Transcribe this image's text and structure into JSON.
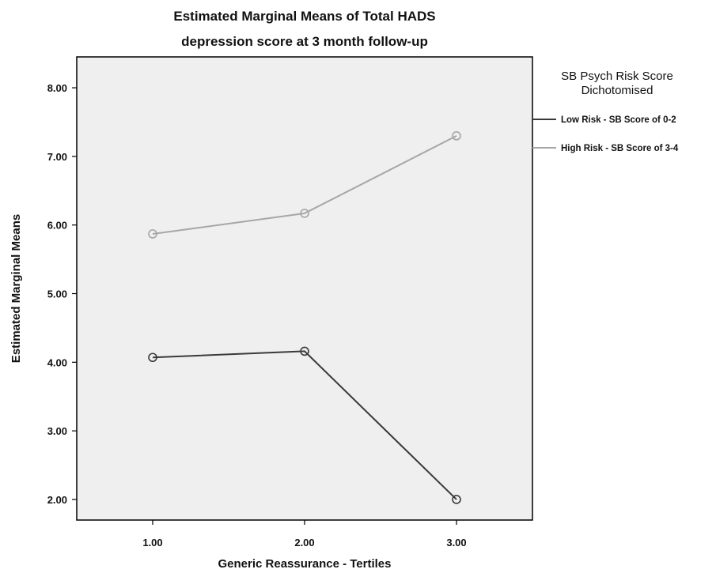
{
  "chart_data": {
    "type": "line",
    "title": [
      "Estimated Marginal Means of Total HADS",
      "depression score at 3 month follow-up"
    ],
    "xlabel": "Generic Reassurance - Tertiles",
    "ylabel": "Estimated Marginal Means",
    "categories": [
      "1.00",
      "2.00",
      "3.00"
    ],
    "x": [
      1,
      2,
      3
    ],
    "xlim": [
      0.5,
      3.5
    ],
    "ylim": [
      1.7,
      8.45
    ],
    "yticks": [
      2,
      3,
      4,
      5,
      6,
      7,
      8
    ],
    "ytick_labels": [
      "2.00",
      "3.00",
      "4.00",
      "5.00",
      "6.00",
      "7.00",
      "8.00"
    ],
    "grid": false,
    "legend": {
      "title": [
        "SB Psych Risk Score",
        "Dichotomised"
      ],
      "placement": "right"
    },
    "series": [
      {
        "name": "Low Risk - SB Score of 0-2",
        "values": [
          4.07,
          4.16,
          2.0
        ],
        "color": "#3a3a3a"
      },
      {
        "name": "High Risk - SB Score of 3-4",
        "values": [
          5.87,
          6.17,
          7.3
        ],
        "color": "#a6a6a6"
      }
    ],
    "plot_background": "#efefef"
  }
}
